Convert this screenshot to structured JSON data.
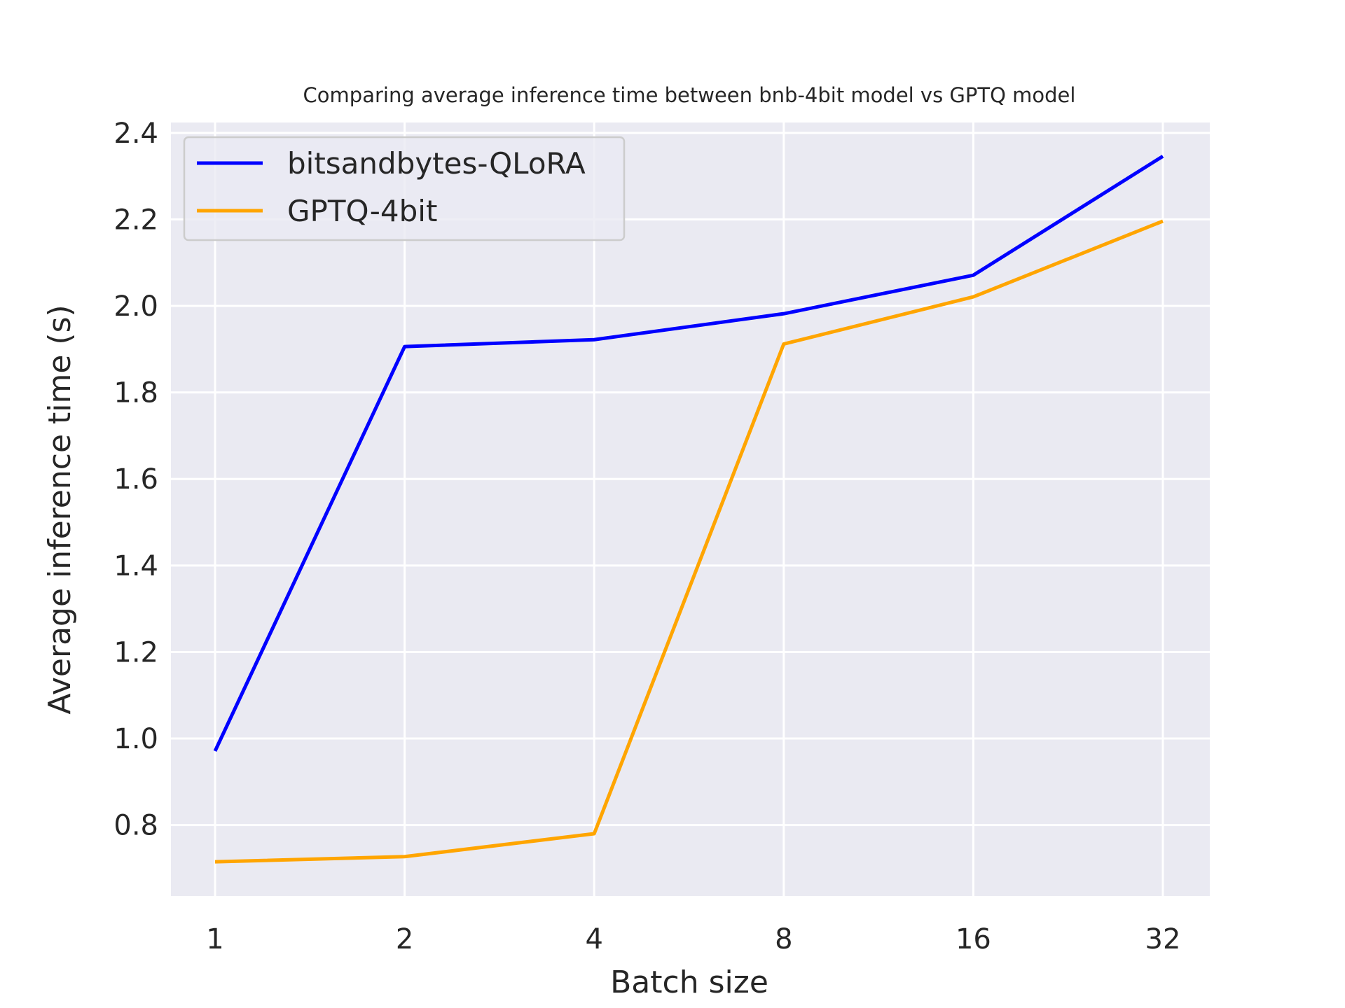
{
  "chart_data": {
    "type": "line",
    "title": "Comparing average inference time between bnb-4bit model vs GPTQ model",
    "xlabel": "Batch size",
    "ylabel": "Average inference time (s)",
    "categories": [
      "1",
      "2",
      "4",
      "8",
      "16",
      "32"
    ],
    "yticks": [
      "0.8",
      "1.0",
      "1.2",
      "1.4",
      "1.6",
      "1.8",
      "2.0",
      "2.2",
      "2.4"
    ],
    "ylim": [
      0.636,
      2.424
    ],
    "grid": true,
    "legend_position": "top-left",
    "background": "#eaeaf2",
    "series": [
      {
        "name": "bitsandbytes-QLoRA",
        "color": "#0000ff",
        "values": [
          0.971,
          1.906,
          1.922,
          1.982,
          2.071,
          2.346
        ]
      },
      {
        "name": "GPTQ-4bit",
        "color": "#ffa500",
        "values": [
          0.715,
          0.727,
          0.78,
          1.912,
          2.021,
          2.196
        ]
      }
    ]
  }
}
